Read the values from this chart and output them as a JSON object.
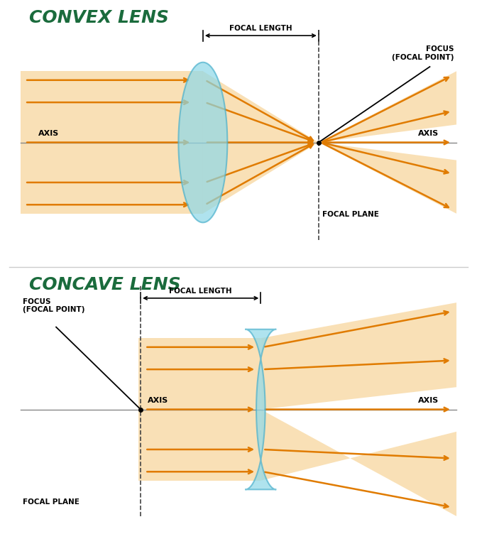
{
  "bg_color": "#ffffff",
  "convex_title": "CONVEX LENS",
  "concave_title": "CONCAVE LENS",
  "title_color": "#1a6b3c",
  "title_fontsize": 18,
  "beam_fill_color": "#f5c87a",
  "beam_fill_alpha": 0.55,
  "arrow_color": "#e07b00",
  "lens_color": "#8dd8e8",
  "lens_edge_color": "#4ab0cc",
  "lens_alpha": 0.7,
  "axis_line_color": "#888888",
  "focal_plane_color": "#444444",
  "label_fontsize": 8,
  "focal_length_label": "FOCAL LENGTH",
  "focal_plane_label": "FOCAL PLANE",
  "focus_label": "FOCUS\n(FOCAL POINT)",
  "axis_label": "AXIS"
}
